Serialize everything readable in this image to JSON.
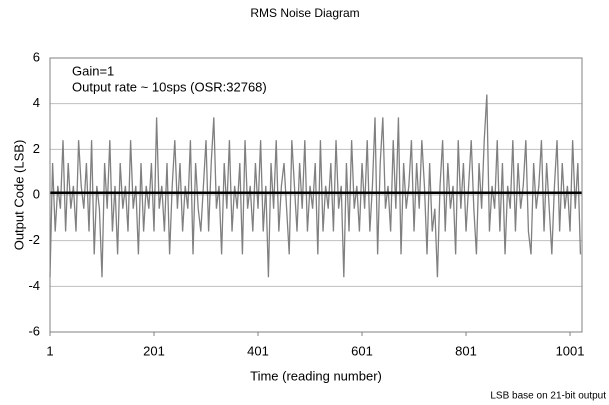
{
  "chart_data": {
    "type": "line",
    "title": "RMS Noise Diagram",
    "x_label": "Time (reading number)",
    "y_label": "Output Code (LSB)",
    "annotations": [
      "Gain=1",
      "Output rate ~ 10sps (OSR:32768)"
    ],
    "footnote": "LSB base on 21-bit output",
    "xlim": [
      1,
      1024
    ],
    "xticks": [
      1,
      201,
      401,
      601,
      801,
      1001
    ],
    "ylim": [
      -6,
      6
    ],
    "yticks": [
      -6,
      -4,
      -2,
      0,
      2,
      4,
      6
    ],
    "grid": true,
    "reference_line": {
      "value": 0.1,
      "color": "#000000"
    },
    "x": [
      1,
      6,
      11,
      16,
      21,
      26,
      31,
      36,
      41,
      46,
      51,
      56,
      61,
      66,
      71,
      76,
      81,
      86,
      91,
      96,
      101,
      106,
      111,
      116,
      121,
      126,
      131,
      136,
      141,
      146,
      151,
      156,
      161,
      166,
      171,
      176,
      181,
      186,
      191,
      196,
      201,
      206,
      211,
      216,
      221,
      226,
      231,
      236,
      241,
      246,
      251,
      256,
      261,
      266,
      271,
      276,
      281,
      286,
      291,
      296,
      301,
      306,
      311,
      316,
      321,
      326,
      331,
      336,
      341,
      346,
      351,
      356,
      361,
      366,
      371,
      376,
      381,
      386,
      391,
      396,
      401,
      406,
      411,
      416,
      421,
      426,
      431,
      436,
      441,
      446,
      451,
      456,
      461,
      466,
      471,
      476,
      481,
      486,
      491,
      496,
      501,
      506,
      511,
      516,
      521,
      526,
      531,
      536,
      541,
      546,
      551,
      556,
      561,
      566,
      571,
      576,
      581,
      586,
      591,
      596,
      601,
      606,
      611,
      616,
      621,
      626,
      631,
      636,
      641,
      646,
      651,
      656,
      661,
      666,
      671,
      676,
      681,
      686,
      691,
      696,
      701,
      706,
      711,
      716,
      721,
      726,
      731,
      736,
      741,
      746,
      751,
      756,
      761,
      766,
      771,
      776,
      781,
      786,
      791,
      796,
      801,
      806,
      811,
      816,
      821,
      826,
      831,
      836,
      841,
      846,
      851,
      856,
      861,
      866,
      871,
      876,
      881,
      886,
      891,
      896,
      901,
      906,
      911,
      916,
      921,
      926,
      931,
      936,
      941,
      946,
      951,
      956,
      961,
      966,
      971,
      976,
      981,
      986,
      991,
      996,
      1001,
      1006,
      1011,
      1016,
      1021
    ],
    "series": [
      {
        "color": "#808080",
        "values": [
          -3.6,
          1.4,
          -1.6,
          0.4,
          -0.6,
          2.4,
          -1.6,
          1.4,
          -0.6,
          0.4,
          -1.6,
          2.4,
          0.4,
          -0.6,
          1.4,
          -1.6,
          2.4,
          -2.6,
          0.4,
          -0.6,
          -3.6,
          1.4,
          -0.6,
          2.4,
          -1.6,
          0.4,
          -2.6,
          1.4,
          -0.6,
          0.4,
          -1.6,
          2.4,
          -0.6,
          0.4,
          -2.6,
          1.4,
          -1.6,
          0.4,
          -0.6,
          1.4,
          -1.6,
          3.4,
          -0.6,
          0.4,
          -1.6,
          1.4,
          -2.6,
          0.4,
          2.4,
          -0.6,
          1.4,
          -1.6,
          0.4,
          -0.6,
          2.4,
          -2.6,
          1.4,
          -0.6,
          -1.6,
          0.4,
          2.4,
          -1.6,
          1.4,
          3.4,
          -0.6,
          0.4,
          -2.6,
          1.4,
          -0.6,
          2.4,
          -1.6,
          0.4,
          -0.6,
          1.4,
          -2.6,
          2.4,
          -0.6,
          0.4,
          -1.6,
          1.4,
          -0.6,
          2.4,
          -1.6,
          0.4,
          -3.6,
          1.4,
          -0.6,
          2.4,
          -1.6,
          0.4,
          1.4,
          -0.6,
          -2.6,
          2.4,
          0.4,
          -1.6,
          1.4,
          -0.6,
          2.4,
          -1.6,
          0.4,
          -0.6,
          1.4,
          -2.6,
          2.4,
          -1.6,
          0.4,
          -0.6,
          1.4,
          -1.6,
          2.4,
          -0.6,
          0.4,
          -3.6,
          1.4,
          -1.6,
          2.4,
          -0.6,
          0.4,
          -1.6,
          1.4,
          -0.6,
          2.4,
          -1.6,
          0.4,
          3.4,
          -2.6,
          1.4,
          3.4,
          -0.6,
          0.4,
          -1.6,
          2.4,
          -0.6,
          3.4,
          -2.6,
          1.4,
          -0.6,
          0.4,
          2.4,
          -1.6,
          1.4,
          -0.6,
          2.4,
          0.4,
          -2.6,
          1.4,
          -1.6,
          -0.6,
          -3.6,
          0.4,
          2.4,
          -1.6,
          1.4,
          -0.6,
          0.4,
          -2.6,
          2.4,
          -0.6,
          1.4,
          -1.6,
          0.4,
          2.4,
          -0.6,
          -2.6,
          1.4,
          -0.6,
          2.4,
          4.4,
          -1.6,
          0.4,
          -0.6,
          2.4,
          -1.6,
          1.4,
          -2.6,
          0.4,
          -0.6,
          2.4,
          -1.6,
          1.4,
          -0.6,
          0.4,
          2.4,
          -1.6,
          -2.6,
          1.4,
          -0.6,
          0.4,
          2.4,
          -1.6,
          1.4,
          -0.6,
          -2.6,
          0.4,
          2.4,
          -1.6,
          1.4,
          -0.6,
          0.4,
          -1.6,
          2.4,
          -0.6,
          1.4,
          -2.6
        ]
      }
    ]
  }
}
